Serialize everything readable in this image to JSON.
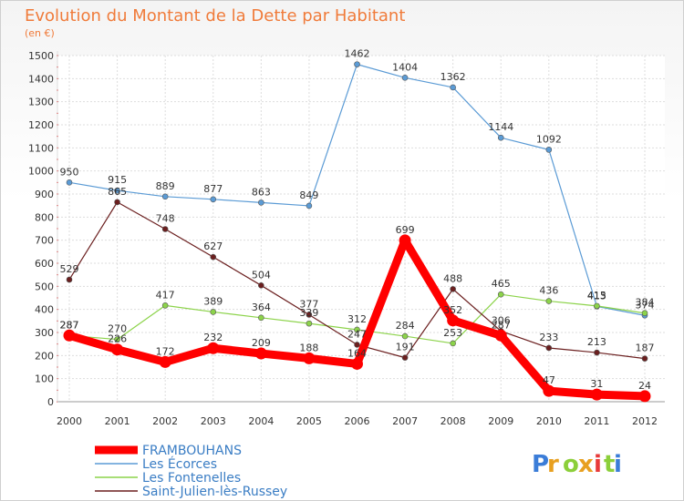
{
  "chart_data": {
    "type": "line",
    "title": "Evolution du Montant de la Dette par Habitant",
    "subtitle": "(en €)",
    "x": [
      "2000",
      "2001",
      "2002",
      "2003",
      "2004",
      "2005",
      "2006",
      "2007",
      "2008",
      "2009",
      "2010",
      "2011",
      "2012"
    ],
    "ylim": [
      0,
      1500
    ],
    "yticks": [
      0,
      100,
      200,
      300,
      400,
      500,
      600,
      700,
      800,
      900,
      1000,
      1100,
      1200,
      1300,
      1400,
      1500
    ],
    "grid": true,
    "legend": "bottom-left",
    "series": [
      {
        "name": "FRAMBOUHANS",
        "color": "#ff0000",
        "values": [
          287,
          226,
          172,
          232,
          209,
          188,
          164,
          699,
          352,
          287,
          47,
          31,
          24
        ]
      },
      {
        "name": "Les Écorces",
        "color": "#5b9bd5",
        "values": [
          950,
          915,
          889,
          877,
          863,
          849,
          1462,
          1404,
          1362,
          1144,
          1092,
          413,
          374
        ]
      },
      {
        "name": "Les Fontenelles",
        "color": "#8cd34a",
        "values": [
          287,
          270,
          417,
          389,
          364,
          339,
          312,
          284,
          253,
          465,
          436,
          415,
          384
        ]
      },
      {
        "name": "Saint-Julien-lès-Russey",
        "color": "#6b1f1f",
        "values": [
          529,
          865,
          748,
          627,
          504,
          377,
          247,
          191,
          488,
          306,
          233,
          213,
          187
        ]
      }
    ]
  },
  "brand": {
    "text": "Proxiti"
  }
}
